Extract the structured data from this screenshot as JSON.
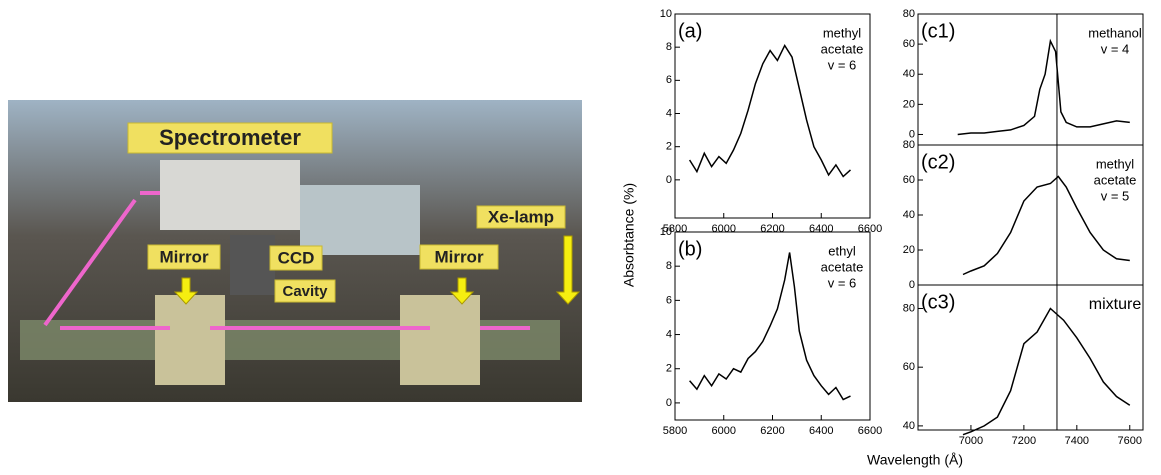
{
  "photo": {
    "labels": [
      "Spectrometer",
      "CCD",
      "Mirror",
      "Mirror",
      "Cavity",
      "Xe-lamp"
    ]
  },
  "axis_labels": {
    "y": "Absorbtance (%)",
    "x": "Wavelength (Å)"
  },
  "chart_data": [
    {
      "type": "line",
      "label": "(a)",
      "note": [
        "methyl",
        "acetate",
        "v = 6"
      ],
      "xlim": [
        5800,
        6600
      ],
      "xticks": [
        5800,
        6000,
        6200,
        6400,
        6600
      ],
      "ylim": [
        -2.3,
        10
      ],
      "yticks": [
        0,
        2,
        4,
        6,
        8,
        10
      ],
      "color": "#000000",
      "x": [
        5860,
        5890,
        5920,
        5950,
        5980,
        6010,
        6040,
        6070,
        6100,
        6130,
        6160,
        6190,
        6220,
        6250,
        6280,
        6310,
        6340,
        6370,
        6400,
        6430,
        6460,
        6490,
        6520
      ],
      "values": [
        1.2,
        0.5,
        1.6,
        0.8,
        1.4,
        1.0,
        1.8,
        2.8,
        4.2,
        5.8,
        7.0,
        7.8,
        7.2,
        8.1,
        7.4,
        5.5,
        3.6,
        2.0,
        1.2,
        0.3,
        0.9,
        0.2,
        0.6
      ]
    },
    {
      "type": "line",
      "label": "(b)",
      "note": [
        "ethyl",
        "acetate",
        "v = 6"
      ],
      "xlim": [
        5800,
        6600
      ],
      "xticks": [
        5800,
        6000,
        6200,
        6400,
        6600
      ],
      "ylim": [
        -1,
        10
      ],
      "yticks": [
        0,
        2,
        4,
        6,
        8,
        10
      ],
      "color": "#000000",
      "x": [
        5860,
        5890,
        5920,
        5950,
        5980,
        6010,
        6040,
        6070,
        6100,
        6130,
        6160,
        6190,
        6220,
        6250,
        6270,
        6290,
        6310,
        6340,
        6370,
        6400,
        6430,
        6460,
        6490,
        6520
      ],
      "values": [
        1.3,
        0.8,
        1.6,
        1.0,
        1.7,
        1.4,
        2.0,
        1.8,
        2.6,
        3.0,
        3.6,
        4.5,
        5.5,
        7.2,
        8.8,
        6.8,
        4.2,
        2.5,
        1.6,
        1.0,
        0.5,
        0.9,
        0.2,
        0.4
      ]
    },
    {
      "type": "line",
      "label": "(c1)",
      "note": [
        "methanol",
        "v = 4"
      ],
      "xlim": [
        6800,
        7650
      ],
      "ylim": [
        -7,
        80
      ],
      "yticks": [
        0,
        20,
        40,
        60,
        80
      ],
      "vline": 7325,
      "color": "#000000",
      "x": [
        6950,
        7000,
        7050,
        7100,
        7150,
        7200,
        7240,
        7260,
        7280,
        7300,
        7320,
        7340,
        7360,
        7400,
        7450,
        7500,
        7550,
        7600
      ],
      "values": [
        0,
        1,
        1,
        2,
        3,
        6,
        12,
        30,
        40,
        62,
        55,
        15,
        8,
        5,
        5,
        7,
        9,
        8
      ]
    },
    {
      "type": "line",
      "label": "(c2)",
      "note": [
        "methyl",
        "acetate",
        "v = 5"
      ],
      "xlim": [
        6800,
        7650
      ],
      "ylim": [
        0,
        80
      ],
      "yticks": [
        0,
        20,
        40,
        60,
        80
      ],
      "vline": 7325,
      "color": "#000000",
      "x": [
        6970,
        7000,
        7050,
        7100,
        7150,
        7200,
        7250,
        7300,
        7330,
        7360,
        7400,
        7450,
        7500,
        7550,
        7600
      ],
      "values": [
        6,
        8,
        11,
        18,
        30,
        48,
        56,
        58,
        62,
        56,
        44,
        30,
        20,
        15,
        14
      ]
    },
    {
      "type": "line",
      "label": "(c3)",
      "note": [
        "mixture"
      ],
      "xlim": [
        6800,
        7650
      ],
      "xticks": [
        7000,
        7200,
        7400,
        7600
      ],
      "ylim": [
        38.6,
        88
      ],
      "yticks": [
        40,
        60,
        80
      ],
      "vline": 7325,
      "color": "#000000",
      "x": [
        6970,
        7000,
        7050,
        7100,
        7150,
        7200,
        7250,
        7300,
        7350,
        7400,
        7450,
        7500,
        7550,
        7600
      ],
      "values": [
        37,
        38,
        40,
        43,
        52,
        68,
        72,
        80,
        76,
        70,
        63,
        55,
        50,
        47
      ]
    }
  ]
}
